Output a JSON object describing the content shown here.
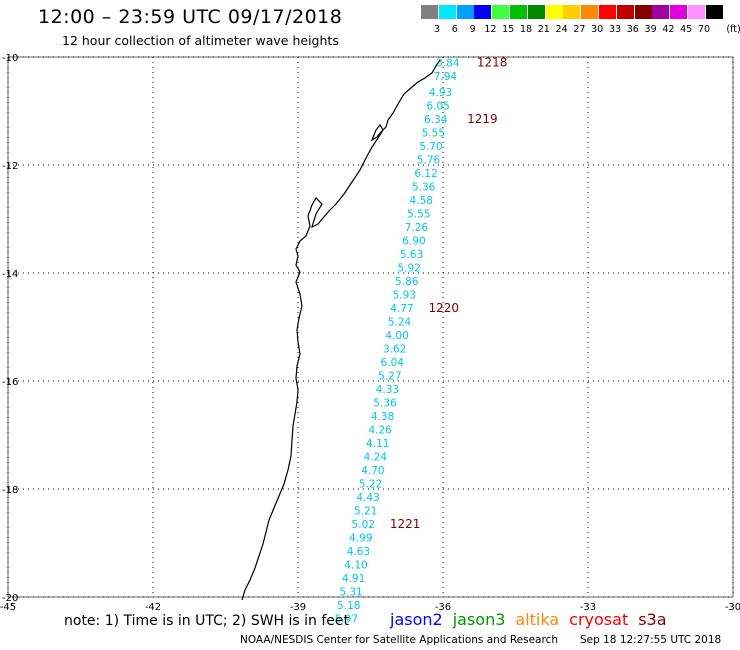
{
  "header": {
    "title": "12:00 – 23:59 UTC 09/17/2018",
    "subtitle": "12 hour collection of altimeter wave heights"
  },
  "legend": {
    "units": "(ft)",
    "bins": [
      {
        "label": "3",
        "color": "#808080"
      },
      {
        "label": "6",
        "color": "#00e8ff"
      },
      {
        "label": "9",
        "color": "#00a0ff"
      },
      {
        "label": "12",
        "color": "#0000ff"
      },
      {
        "label": "15",
        "color": "#40ff40"
      },
      {
        "label": "18",
        "color": "#00c000"
      },
      {
        "label": "21",
        "color": "#008800"
      },
      {
        "label": "24",
        "color": "#ffff00"
      },
      {
        "label": "27",
        "color": "#ffcc00"
      },
      {
        "label": "30",
        "color": "#ff8800"
      },
      {
        "label": "33",
        "color": "#ff0000"
      },
      {
        "label": "36",
        "color": "#c00000"
      },
      {
        "label": "39",
        "color": "#800000"
      },
      {
        "label": "42",
        "color": "#a000a0"
      },
      {
        "label": "45",
        "color": "#e000e0"
      },
      {
        "label": "70",
        "color": "#ff90ff"
      },
      {
        "label": "",
        "color": "#000000"
      }
    ]
  },
  "map": {
    "lon_range": [
      -45,
      -30
    ],
    "lat_range": [
      -20,
      -10
    ],
    "lon_ticks": [
      "-45",
      "-42",
      "-39",
      "-36",
      "-33",
      "-30"
    ],
    "lat_ticks": [
      "-10",
      "-12",
      "-14",
      "-16",
      "-18",
      "-20"
    ],
    "track_color": "#00c8e0",
    "time_color": "#800000",
    "observations": [
      {
        "lon": -35.9,
        "lat": -10.1,
        "swh": "3.84"
      },
      {
        "lon": -35.95,
        "lat": -10.35,
        "swh": "7.94"
      },
      {
        "lon": -36.05,
        "lat": -10.65,
        "swh": "4.93"
      },
      {
        "lon": -36.1,
        "lat": -10.9,
        "swh": "6.05"
      },
      {
        "lon": -36.15,
        "lat": -11.15,
        "swh": "6.34"
      },
      {
        "lon": -36.2,
        "lat": -11.4,
        "swh": "5.55"
      },
      {
        "lon": -36.25,
        "lat": -11.65,
        "swh": "5.70"
      },
      {
        "lon": -36.3,
        "lat": -11.9,
        "swh": "5.76"
      },
      {
        "lon": -36.35,
        "lat": -12.15,
        "swh": "6.12"
      },
      {
        "lon": -36.4,
        "lat": -12.4,
        "swh": "5.36"
      },
      {
        "lon": -36.45,
        "lat": -12.65,
        "swh": "4.58"
      },
      {
        "lon": -36.5,
        "lat": -12.9,
        "swh": "5.55"
      },
      {
        "lon": -36.55,
        "lat": -13.15,
        "swh": "7.26"
      },
      {
        "lon": -36.6,
        "lat": -13.4,
        "swh": "6.90"
      },
      {
        "lon": -36.65,
        "lat": -13.65,
        "swh": "5.63"
      },
      {
        "lon": -36.7,
        "lat": -13.9,
        "swh": "5.92"
      },
      {
        "lon": -36.75,
        "lat": -14.15,
        "swh": "5.86"
      },
      {
        "lon": -36.8,
        "lat": -14.4,
        "swh": "5.93"
      },
      {
        "lon": -36.85,
        "lat": -14.65,
        "swh": "4.77"
      },
      {
        "lon": -36.9,
        "lat": -14.9,
        "swh": "5.24"
      },
      {
        "lon": -36.95,
        "lat": -15.15,
        "swh": "4.00"
      },
      {
        "lon": -37.0,
        "lat": -15.4,
        "swh": "3.62"
      },
      {
        "lon": -37.05,
        "lat": -15.65,
        "swh": "6.04"
      },
      {
        "lon": -37.1,
        "lat": -15.9,
        "swh": "5.27"
      },
      {
        "lon": -37.15,
        "lat": -16.15,
        "swh": "4.33"
      },
      {
        "lon": -37.2,
        "lat": -16.4,
        "swh": "5.36"
      },
      {
        "lon": -37.25,
        "lat": -16.65,
        "swh": "4.38"
      },
      {
        "lon": -37.3,
        "lat": -16.9,
        "swh": "4.26"
      },
      {
        "lon": -37.35,
        "lat": -17.15,
        "swh": "4.11"
      },
      {
        "lon": -37.4,
        "lat": -17.4,
        "swh": "4.24"
      },
      {
        "lon": -37.45,
        "lat": -17.65,
        "swh": "4.70"
      },
      {
        "lon": -37.5,
        "lat": -17.9,
        "swh": "5.22"
      },
      {
        "lon": -37.55,
        "lat": -18.15,
        "swh": "4.43"
      },
      {
        "lon": -37.6,
        "lat": -18.4,
        "swh": "5.21"
      },
      {
        "lon": -37.65,
        "lat": -18.65,
        "swh": "5.02"
      },
      {
        "lon": -37.7,
        "lat": -18.9,
        "swh": "4.99"
      },
      {
        "lon": -37.75,
        "lat": -19.15,
        "swh": "4.63"
      },
      {
        "lon": -37.8,
        "lat": -19.4,
        "swh": "4.10"
      },
      {
        "lon": -37.85,
        "lat": -19.65,
        "swh": "4.91"
      },
      {
        "lon": -37.9,
        "lat": -19.9,
        "swh": "5.31"
      },
      {
        "lon": -37.95,
        "lat": -20.15,
        "swh": "5.18"
      },
      {
        "lon": -38.0,
        "lat": -20.4,
        "swh": "5.97"
      }
    ],
    "time_labels": [
      {
        "lon": -35.3,
        "lat": -10.1,
        "text": "1218"
      },
      {
        "lon": -35.5,
        "lat": -11.15,
        "text": "1219"
      },
      {
        "lon": -36.3,
        "lat": -14.65,
        "text": "1220"
      },
      {
        "lon": -37.1,
        "lat": -18.65,
        "text": "1221"
      }
    ]
  },
  "note": "note: 1) Time is in UTC; 2) SWH is in feet",
  "satellites": [
    {
      "name": "jason2",
      "color": "#0000ff"
    },
    {
      "name": "jason3",
      "color": "#009900"
    },
    {
      "name": "altika",
      "color": "#ff8800"
    },
    {
      "name": "cryosat",
      "color": "#ff0000"
    },
    {
      "name": "s3a",
      "color": "#800000"
    }
  ],
  "footer": {
    "credit": "NOAA/NESDIS Center for Satellite Applications and Research",
    "timestamp": "Sep 18 12:27:55 UTC 2018"
  }
}
